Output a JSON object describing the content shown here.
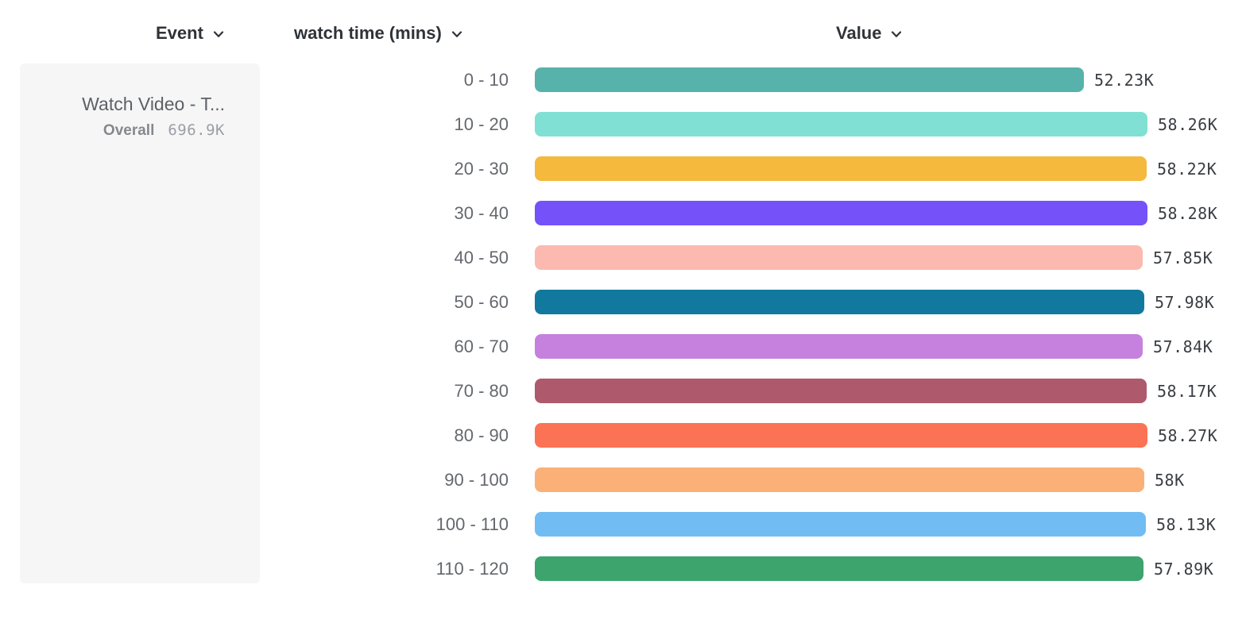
{
  "columns": {
    "event": {
      "label": "Event"
    },
    "breakdown": {
      "label": "watch time (mins)"
    },
    "value": {
      "label": "Value"
    }
  },
  "event_card": {
    "title": "Watch Video - T...",
    "overall_label": "Overall",
    "overall_value": "696.9K"
  },
  "chart_data": {
    "type": "bar",
    "orientation": "horizontal",
    "title": "",
    "xlabel": "Value",
    "ylabel": "watch time (mins)",
    "grid": false,
    "legend": false,
    "xlim": [
      0,
      58280
    ],
    "categories": [
      "0 - 10",
      "10 - 20",
      "20 - 30",
      "30 - 40",
      "40 - 50",
      "50 - 60",
      "60 - 70",
      "70 - 80",
      "80 - 90",
      "90 - 100",
      "100 - 110",
      "110 - 120"
    ],
    "values": [
      52230,
      58260,
      58220,
      58280,
      57850,
      57980,
      57840,
      58170,
      58270,
      58000,
      58130,
      57890
    ],
    "value_labels": [
      "52.23K",
      "58.26K",
      "58.22K",
      "58.28K",
      "57.85K",
      "57.98K",
      "57.84K",
      "58.17K",
      "58.27K",
      "58K",
      "58.13K",
      "57.89K"
    ],
    "bar_colors": [
      "#57b2ab",
      "#80e0d3",
      "#f5b93d",
      "#7551fa",
      "#fcb9b0",
      "#12799e",
      "#c681de",
      "#ae5a6c",
      "#fc7254",
      "#fbb078",
      "#71bdf3",
      "#3ca46c"
    ]
  }
}
